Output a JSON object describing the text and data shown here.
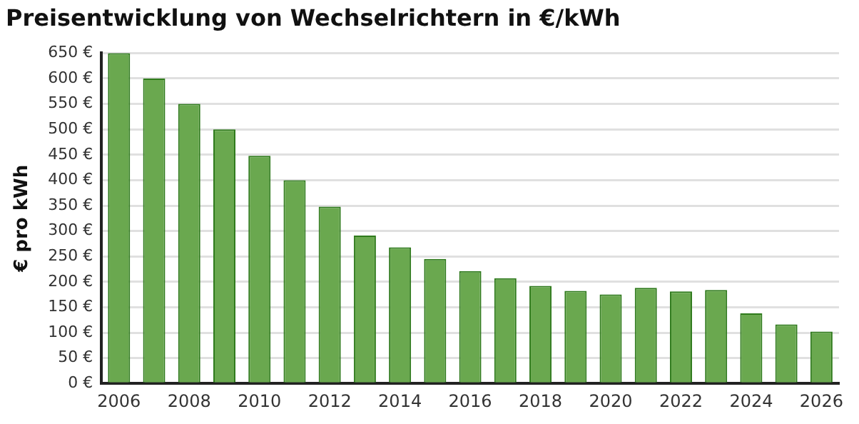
{
  "chart_data": {
    "type": "bar",
    "title": "Preisentwicklung von Wechselrichtern in €/kWh",
    "ylabel": "€ pro kWh",
    "categories": [
      "2006",
      null,
      "2008",
      null,
      "2010",
      null,
      "2012",
      null,
      "2014",
      null,
      "2016",
      null,
      "2018",
      null,
      "2020",
      null,
      "2022",
      null,
      "2024",
      null,
      "2026"
    ],
    "values": [
      650,
      600,
      550,
      500,
      448,
      400,
      348,
      291,
      268,
      245,
      221,
      207,
      192,
      182,
      175,
      188,
      181,
      184,
      138,
      116,
      102
    ],
    "color": "#6aa84f",
    "ylim": [
      0,
      650
    ],
    "yticks": [
      {
        "value": 0,
        "label": "0 €"
      },
      {
        "value": 50,
        "label": "50 €"
      },
      {
        "value": 100,
        "label": "100 €"
      },
      {
        "value": 150,
        "label": "150 €"
      },
      {
        "value": 200,
        "label": "200 €"
      },
      {
        "value": 250,
        "label": "250 €"
      },
      {
        "value": 300,
        "label": "300 €"
      },
      {
        "value": 350,
        "label": "350 €"
      },
      {
        "value": 400,
        "label": "400 €"
      },
      {
        "value": 450,
        "label": "450 €"
      },
      {
        "value": 500,
        "label": "500 €"
      },
      {
        "value": 550,
        "label": "550 €"
      },
      {
        "value": 600,
        "label": "600 €"
      },
      {
        "value": 650,
        "label": "650 €"
      }
    ],
    "grid": "y"
  }
}
